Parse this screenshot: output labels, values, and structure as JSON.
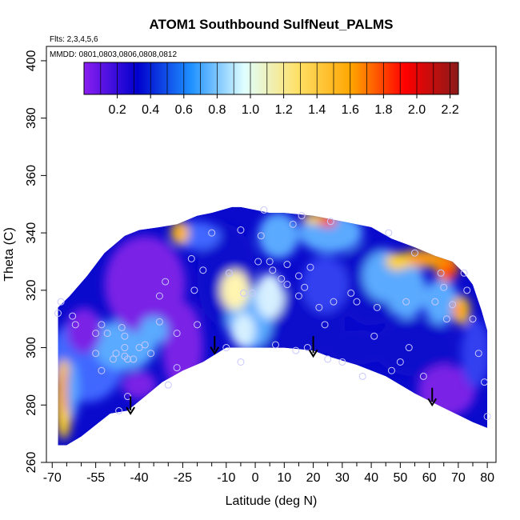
{
  "chart_data": {
    "type": "heatmap",
    "title": "ATOM1 Southbound SulfNeut_PALMS",
    "annotations": [
      "Flts: 2,3,4,5,6",
      "MMDD: 0801,0803,0806,0808,0812"
    ],
    "xlabel": "Latitude (deg N)",
    "ylabel": "Theta (C)",
    "xlim": [
      -72,
      83
    ],
    "ylim": [
      260,
      405
    ],
    "x_ticks": [
      -70,
      -55,
      -40,
      -25,
      -10,
      0,
      10,
      20,
      30,
      40,
      50,
      60,
      70,
      80
    ],
    "x_minor_ticks": [
      -65,
      -60,
      -50,
      -45,
      -35,
      -30,
      -20,
      -15,
      -5,
      5,
      15,
      25,
      35,
      45,
      55,
      65,
      75
    ],
    "y_ticks": [
      260,
      280,
      300,
      320,
      340,
      360,
      380,
      400
    ],
    "colorbar": {
      "range": [
        0,
        2.25
      ],
      "ticks": [
        0.2,
        0.4,
        0.6,
        0.8,
        1.0,
        1.2,
        1.4,
        1.6,
        1.8,
        2.0,
        2.2
      ],
      "tick_labels": [
        "0.2",
        "0.4",
        "0.6",
        "0.8",
        "1.0",
        "1.2",
        "1.4",
        "1.6",
        "1.8",
        "2.0",
        "2.2"
      ],
      "colors": [
        "#8b1ef0",
        "#0000cd",
        "#1e90ff",
        "#e0ffff",
        "#ffe066",
        "#ffa500",
        "#ff0000",
        "#8b1a1a"
      ]
    },
    "field_colors": {
      "deep_purple": "#7a22e6",
      "dark_blue": "#0a0acc",
      "medium_blue": "#3040f0",
      "sky_blue": "#5aaaff",
      "pale_blue": "#d6f0ff",
      "yellow": "#ffd21e",
      "orange": "#ff8a00",
      "red": "#ff2000"
    },
    "coverage_boundary": {
      "upper": [
        [
          -68,
          314
        ],
        [
          -64,
          318
        ],
        [
          -58,
          325
        ],
        [
          -52,
          333
        ],
        [
          -45,
          339
        ],
        [
          -40,
          341
        ],
        [
          -33,
          342
        ],
        [
          -27,
          343
        ],
        [
          -20,
          346
        ],
        [
          -15,
          347
        ],
        [
          -8,
          349
        ],
        [
          -5,
          349
        ],
        [
          0,
          348
        ],
        [
          5,
          347
        ],
        [
          10,
          347
        ],
        [
          20,
          346
        ],
        [
          30,
          344
        ],
        [
          40,
          342
        ],
        [
          47,
          338
        ],
        [
          55,
          335
        ],
        [
          62,
          332
        ],
        [
          68,
          330
        ],
        [
          72,
          326
        ],
        [
          75,
          322
        ],
        [
          78,
          313
        ],
        [
          80,
          306
        ]
      ],
      "lower": [
        [
          80,
          272
        ],
        [
          75,
          274
        ],
        [
          65,
          279
        ],
        [
          55,
          284
        ],
        [
          45,
          290
        ],
        [
          35,
          294
        ],
        [
          25,
          297
        ],
        [
          20,
          299
        ],
        [
          10,
          300
        ],
        [
          0,
          300
        ],
        [
          -10,
          300
        ],
        [
          -18,
          295
        ],
        [
          -25,
          292
        ],
        [
          -32,
          288
        ],
        [
          -38,
          283
        ],
        [
          -44,
          278
        ],
        [
          -50,
          277
        ],
        [
          -55,
          273
        ],
        [
          -60,
          269
        ],
        [
          -65,
          266
        ],
        [
          -68,
          266
        ]
      ]
    },
    "blobs": [
      {
        "x": -58,
        "y": 296,
        "rx": 13,
        "ry": 15,
        "color": "#3f68ff"
      },
      {
        "x": -45,
        "y": 301,
        "rx": 11,
        "ry": 9,
        "color": "#5aaaff"
      },
      {
        "x": -38,
        "y": 322,
        "rx": 14,
        "ry": 17,
        "color": "#7a22e6"
      },
      {
        "x": -25,
        "y": 300,
        "rx": 7,
        "ry": 16,
        "color": "#7a22e6"
      },
      {
        "x": -10,
        "y": 325,
        "rx": 10,
        "ry": 18,
        "color": "#0a0acc"
      },
      {
        "x": 14,
        "y": 308,
        "rx": 17,
        "ry": 12,
        "color": "#0a0acc"
      },
      {
        "x": 40,
        "y": 322,
        "rx": 12,
        "ry": 14,
        "color": "#0a0acc"
      },
      {
        "x": 24,
        "y": 322,
        "rx": 8,
        "ry": 10,
        "color": "#3040f0"
      },
      {
        "x": 26,
        "y": 340,
        "rx": 11,
        "ry": 7,
        "color": "#5aaaff"
      },
      {
        "x": 8,
        "y": 339,
        "rx": 7,
        "ry": 8,
        "color": "#5aaaff"
      },
      {
        "x": -2,
        "y": 310,
        "rx": 8,
        "ry": 11,
        "color": "#5aaaff"
      },
      {
        "x": 5,
        "y": 318,
        "rx": 5,
        "ry": 8,
        "color": "#d6f0ff"
      },
      {
        "x": -7,
        "y": 320,
        "rx": 5,
        "ry": 7,
        "color": "#fff4b0"
      },
      {
        "x": -4,
        "y": 306,
        "rx": 4,
        "ry": 6,
        "color": "#d6f0ff"
      },
      {
        "x": -20,
        "y": 339,
        "rx": 8,
        "ry": 5,
        "color": "#3f68ff"
      },
      {
        "x": 45,
        "y": 325,
        "rx": 8,
        "ry": 9,
        "color": "#5aaaff"
      },
      {
        "x": 52,
        "y": 320,
        "rx": 7,
        "ry": 10,
        "color": "#5aaaff"
      },
      {
        "x": 64,
        "y": 316,
        "rx": 6,
        "ry": 8,
        "color": "#5aaaff"
      },
      {
        "x": 55,
        "y": 300,
        "rx": 14,
        "ry": 10,
        "color": "#0a0acc"
      },
      {
        "x": 66,
        "y": 285,
        "rx": 10,
        "ry": 9,
        "color": "#7a22e6"
      },
      {
        "x": 76,
        "y": 298,
        "rx": 5,
        "ry": 12,
        "color": "#3040f0"
      },
      {
        "x": 35,
        "y": 300,
        "rx": 10,
        "ry": 6,
        "color": "#0a0acc"
      },
      {
        "x": -40,
        "y": 287,
        "rx": 6,
        "ry": 5,
        "color": "#7a22e6"
      },
      {
        "x": -35,
        "y": 306,
        "rx": 5,
        "ry": 5,
        "color": "#5aaaff"
      },
      {
        "x": 58,
        "y": 331,
        "rx": 9,
        "ry": 3,
        "color": "#ffd21e"
      },
      {
        "x": 58,
        "y": 331,
        "rx": 6,
        "ry": 2,
        "color": "#ff8a00"
      },
      {
        "x": 66,
        "y": 328,
        "rx": 4,
        "ry": 5,
        "color": "#ff8a00"
      },
      {
        "x": 67,
        "y": 326,
        "rx": 2,
        "ry": 3,
        "color": "#ff2000"
      },
      {
        "x": 71,
        "y": 313,
        "rx": 3,
        "ry": 5,
        "color": "#ffd21e"
      },
      {
        "x": 70,
        "y": 313,
        "rx": 2,
        "ry": 3,
        "color": "#ff8a00"
      },
      {
        "x": 22,
        "y": 345,
        "rx": 6,
        "ry": 2,
        "color": "#ffd21e"
      },
      {
        "x": 25,
        "y": 344,
        "rx": 3,
        "ry": 2,
        "color": "#ff2000"
      },
      {
        "x": 49,
        "y": 330,
        "rx": 4,
        "ry": 3,
        "color": "#ffd21e"
      },
      {
        "x": -26,
        "y": 340,
        "rx": 3,
        "ry": 4,
        "color": "#ffd21e"
      },
      {
        "x": -26,
        "y": 340,
        "rx": 1.5,
        "ry": 2,
        "color": "#ff8a00"
      },
      {
        "x": -66,
        "y": 282,
        "rx": 3,
        "ry": 14,
        "color": "#ffd21e"
      },
      {
        "x": -65,
        "y": 285,
        "rx": 2,
        "ry": 8,
        "color": "#ff8a00"
      },
      {
        "x": -63,
        "y": 285,
        "rx": 2,
        "ry": 10,
        "color": "#5aaaff"
      },
      {
        "x": -59,
        "y": 306,
        "rx": 6,
        "ry": 8,
        "color": "#7a22e6"
      }
    ],
    "points": [
      [
        -68,
        312
      ],
      [
        -67,
        316
      ],
      [
        -63,
        311
      ],
      [
        -62,
        308
      ],
      [
        -55,
        305
      ],
      [
        -55,
        298
      ],
      [
        -53,
        308
      ],
      [
        -51,
        305
      ],
      [
        -49,
        296
      ],
      [
        -48,
        298
      ],
      [
        -46,
        307
      ],
      [
        -45,
        304
      ],
      [
        -45,
        300
      ],
      [
        -45,
        297
      ],
      [
        -44,
        296
      ],
      [
        -42,
        296
      ],
      [
        -40,
        300
      ],
      [
        -38,
        301
      ],
      [
        -36,
        298
      ],
      [
        -33,
        309
      ],
      [
        -33,
        318
      ],
      [
        -31,
        323
      ],
      [
        -27,
        305
      ],
      [
        -27,
        293
      ],
      [
        -22,
        331
      ],
      [
        -21,
        320
      ],
      [
        -20,
        308
      ],
      [
        -18,
        327
      ],
      [
        -15,
        340
      ],
      [
        -10,
        300
      ],
      [
        -9,
        326
      ],
      [
        -5,
        341
      ],
      [
        -4,
        319
      ],
      [
        -1,
        319
      ],
      [
        1,
        330
      ],
      [
        2,
        339
      ],
      [
        3,
        348
      ],
      [
        5,
        330
      ],
      [
        6,
        327
      ],
      [
        7,
        301
      ],
      [
        9,
        324
      ],
      [
        11,
        329
      ],
      [
        11,
        322
      ],
      [
        13,
        343
      ],
      [
        14,
        299
      ],
      [
        15,
        325
      ],
      [
        15,
        318
      ],
      [
        16,
        346
      ],
      [
        17,
        321
      ],
      [
        18,
        300
      ],
      [
        19,
        328
      ],
      [
        22,
        314
      ],
      [
        24,
        308
      ],
      [
        26,
        344
      ],
      [
        27,
        316
      ],
      [
        30,
        295
      ],
      [
        33,
        319
      ],
      [
        35,
        316
      ],
      [
        37,
        290
      ],
      [
        41,
        304
      ],
      [
        42,
        314
      ],
      [
        46,
        340
      ],
      [
        47,
        292
      ],
      [
        50,
        295
      ],
      [
        52,
        316
      ],
      [
        53,
        300
      ],
      [
        55,
        333
      ],
      [
        58,
        290
      ],
      [
        62,
        316
      ],
      [
        64,
        326
      ],
      [
        65,
        321
      ],
      [
        66,
        310
      ],
      [
        68,
        315
      ],
      [
        72,
        326
      ],
      [
        73,
        320
      ],
      [
        75,
        310
      ],
      [
        77,
        298
      ],
      [
        79,
        288
      ],
      [
        80,
        276
      ],
      [
        -53,
        292
      ],
      [
        -44,
        283
      ],
      [
        -30,
        287
      ],
      [
        -47,
        278
      ],
      [
        -5,
        295
      ],
      [
        25,
        296
      ]
    ],
    "arrows": [
      {
        "x": -43,
        "y_from": 283,
        "y_to": 277
      },
      {
        "x": -14,
        "y_from": 304,
        "y_to": 298
      },
      {
        "x": 20,
        "y_from": 304,
        "y_to": 297
      },
      {
        "x": 61,
        "y_from": 286,
        "y_to": 280
      }
    ]
  }
}
